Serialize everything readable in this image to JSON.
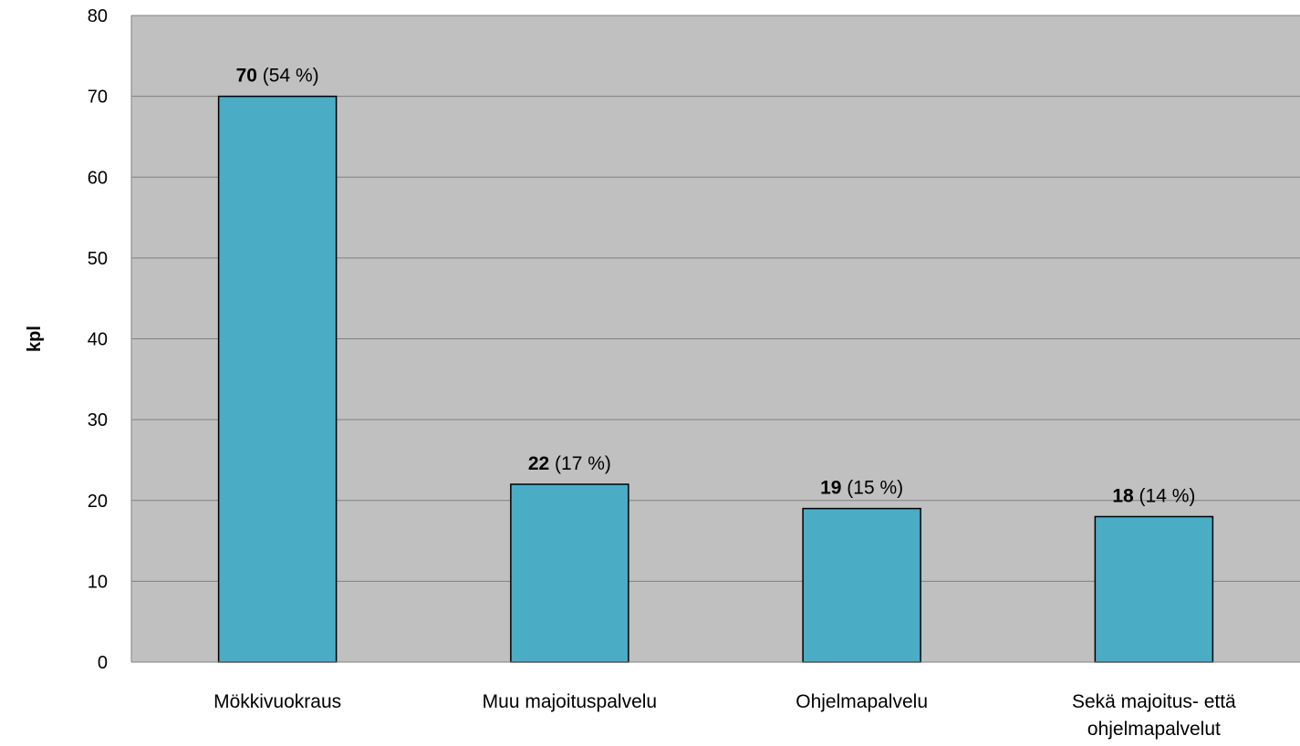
{
  "chart_data": {
    "type": "bar",
    "title": "",
    "xlabel": "",
    "ylabel": "kpl",
    "categories": [
      "Mökkivuokraus",
      "Muu majoituspalvelu",
      "Ohjelmapalvelu",
      "Sekä majoitus- että ohjelmapalvelut"
    ],
    "category_lines": [
      [
        "Mökkivuokraus"
      ],
      [
        "Muu majoituspalvelu"
      ],
      [
        "Ohjelmapalvelu"
      ],
      [
        "Sekä majoitus- että",
        "ohjelmapalvelut"
      ]
    ],
    "series": [
      {
        "values": [
          70,
          22,
          19,
          18
        ],
        "data_labels": [
          {
            "value": "70",
            "pct": " (54 %)"
          },
          {
            "value": "22",
            "pct": " (17 %)"
          },
          {
            "value": "19",
            "pct": " (15 %)"
          },
          {
            "value": "18",
            "pct": " (14 %)"
          }
        ]
      }
    ],
    "ylim": [
      0,
      80
    ],
    "yticks": [
      0,
      10,
      20,
      30,
      40,
      50,
      60,
      70,
      80
    ],
    "grid": true,
    "legend": "none",
    "colors": {
      "bar": "#4BACC6",
      "plot_background": "#C0C0C0",
      "gridline": "#808080",
      "bar_outline": "#000000"
    }
  }
}
